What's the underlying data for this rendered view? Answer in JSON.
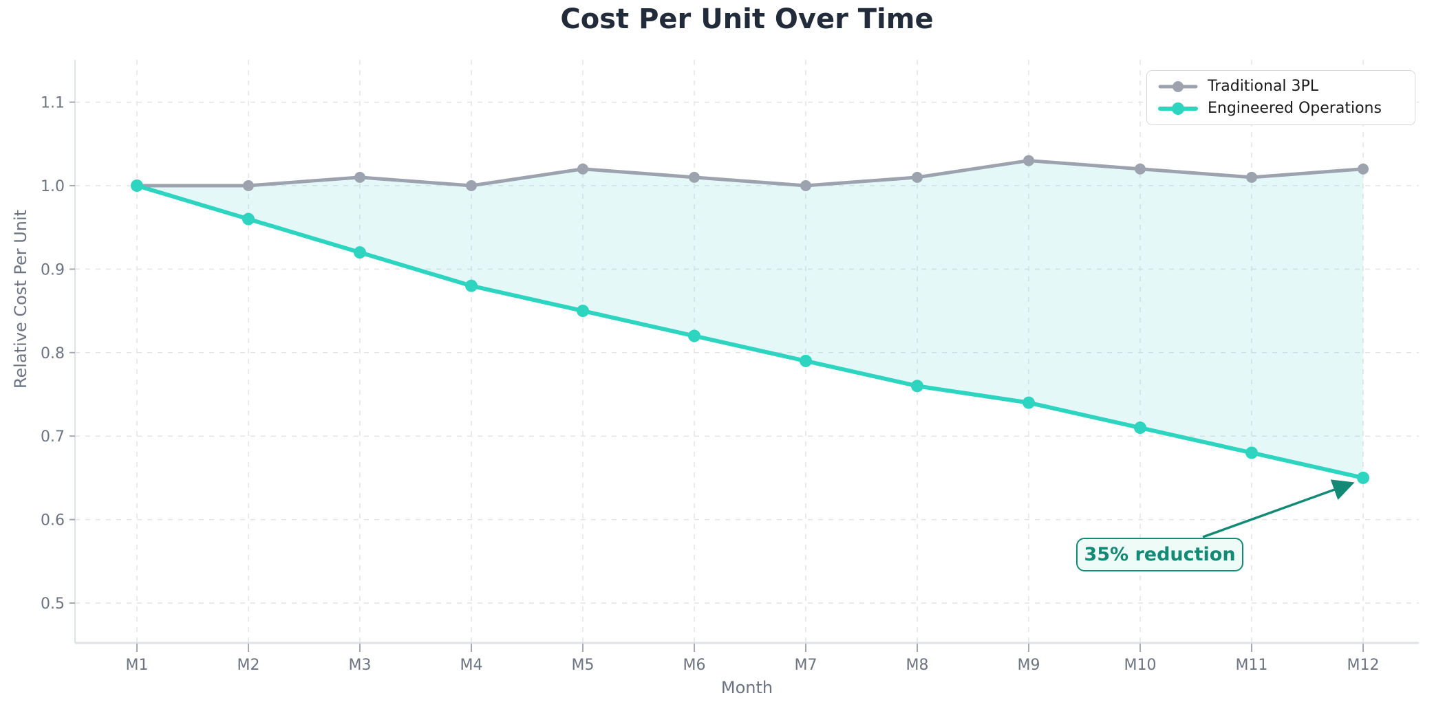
{
  "chart_data": {
    "type": "line",
    "title": "Cost Per Unit Over Time",
    "xlabel": "Month",
    "ylabel": "Relative Cost Per Unit",
    "categories": [
      "M1",
      "M2",
      "M3",
      "M4",
      "M5",
      "M6",
      "M7",
      "M8",
      "M9",
      "M10",
      "M11",
      "M12"
    ],
    "series": [
      {
        "name": "Traditional 3PL",
        "color": "#9ca3af",
        "marker": "circle",
        "values": [
          1.0,
          1.0,
          1.01,
          1.0,
          1.02,
          1.01,
          1.0,
          1.01,
          1.03,
          1.02,
          1.01,
          1.02
        ]
      },
      {
        "name": "Engineered Operations",
        "color": "#2dd4bf",
        "marker": "circle",
        "values": [
          1.0,
          0.96,
          0.92,
          0.88,
          0.85,
          0.82,
          0.79,
          0.76,
          0.74,
          0.71,
          0.68,
          0.65
        ]
      }
    ],
    "yticks": [
      0.5,
      0.6,
      0.7,
      0.8,
      0.9,
      1.0,
      1.1
    ],
    "ylim": [
      0.45,
      1.15
    ],
    "grid": {
      "style": "dashed",
      "color": "#e3e4e6"
    },
    "spine_color": "#dfe2e6",
    "tick_color": "#a3a8b1",
    "fill_between": {
      "between": [
        "Traditional 3PL",
        "Engineered Operations"
      ],
      "color": "rgba(45,212,191,0.13)"
    },
    "legend": {
      "position": "upper right",
      "border": true
    },
    "annotation": {
      "text": "35% reduction",
      "color": "#128a75",
      "background": "#effbf7",
      "target_category": "M12",
      "target_value": 0.65
    }
  }
}
